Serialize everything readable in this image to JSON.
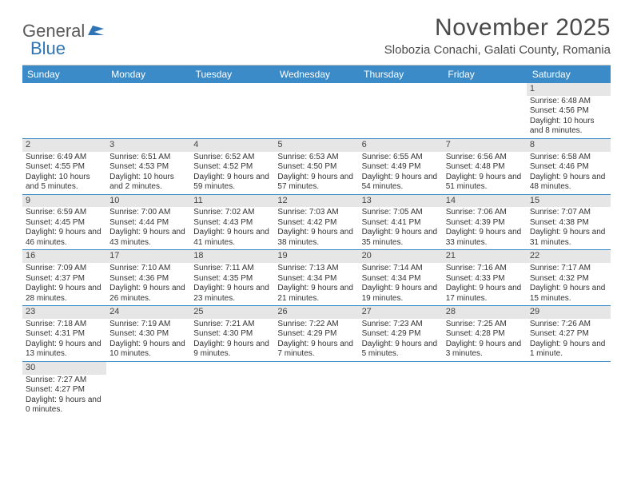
{
  "logo": {
    "text1": "General",
    "text2": "Blue"
  },
  "title": "November 2025",
  "location": "Slobozia Conachi, Galati County, Romania",
  "colors": {
    "header_bg": "#3b8bc9",
    "header_text": "#ffffff",
    "daynum_bg": "#e6e6e6",
    "row_border": "#3b8bc9",
    "logo_gray": "#5a5a5a",
    "logo_blue": "#2f75b5"
  },
  "weekdays": [
    "Sunday",
    "Monday",
    "Tuesday",
    "Wednesday",
    "Thursday",
    "Friday",
    "Saturday"
  ],
  "weeks": [
    [
      null,
      null,
      null,
      null,
      null,
      null,
      {
        "n": "1",
        "sunrise": "Sunrise: 6:48 AM",
        "sunset": "Sunset: 4:56 PM",
        "daylight": "Daylight: 10 hours and 8 minutes."
      }
    ],
    [
      {
        "n": "2",
        "sunrise": "Sunrise: 6:49 AM",
        "sunset": "Sunset: 4:55 PM",
        "daylight": "Daylight: 10 hours and 5 minutes."
      },
      {
        "n": "3",
        "sunrise": "Sunrise: 6:51 AM",
        "sunset": "Sunset: 4:53 PM",
        "daylight": "Daylight: 10 hours and 2 minutes."
      },
      {
        "n": "4",
        "sunrise": "Sunrise: 6:52 AM",
        "sunset": "Sunset: 4:52 PM",
        "daylight": "Daylight: 9 hours and 59 minutes."
      },
      {
        "n": "5",
        "sunrise": "Sunrise: 6:53 AM",
        "sunset": "Sunset: 4:50 PM",
        "daylight": "Daylight: 9 hours and 57 minutes."
      },
      {
        "n": "6",
        "sunrise": "Sunrise: 6:55 AM",
        "sunset": "Sunset: 4:49 PM",
        "daylight": "Daylight: 9 hours and 54 minutes."
      },
      {
        "n": "7",
        "sunrise": "Sunrise: 6:56 AM",
        "sunset": "Sunset: 4:48 PM",
        "daylight": "Daylight: 9 hours and 51 minutes."
      },
      {
        "n": "8",
        "sunrise": "Sunrise: 6:58 AM",
        "sunset": "Sunset: 4:46 PM",
        "daylight": "Daylight: 9 hours and 48 minutes."
      }
    ],
    [
      {
        "n": "9",
        "sunrise": "Sunrise: 6:59 AM",
        "sunset": "Sunset: 4:45 PM",
        "daylight": "Daylight: 9 hours and 46 minutes."
      },
      {
        "n": "10",
        "sunrise": "Sunrise: 7:00 AM",
        "sunset": "Sunset: 4:44 PM",
        "daylight": "Daylight: 9 hours and 43 minutes."
      },
      {
        "n": "11",
        "sunrise": "Sunrise: 7:02 AM",
        "sunset": "Sunset: 4:43 PM",
        "daylight": "Daylight: 9 hours and 41 minutes."
      },
      {
        "n": "12",
        "sunrise": "Sunrise: 7:03 AM",
        "sunset": "Sunset: 4:42 PM",
        "daylight": "Daylight: 9 hours and 38 minutes."
      },
      {
        "n": "13",
        "sunrise": "Sunrise: 7:05 AM",
        "sunset": "Sunset: 4:41 PM",
        "daylight": "Daylight: 9 hours and 35 minutes."
      },
      {
        "n": "14",
        "sunrise": "Sunrise: 7:06 AM",
        "sunset": "Sunset: 4:39 PM",
        "daylight": "Daylight: 9 hours and 33 minutes."
      },
      {
        "n": "15",
        "sunrise": "Sunrise: 7:07 AM",
        "sunset": "Sunset: 4:38 PM",
        "daylight": "Daylight: 9 hours and 31 minutes."
      }
    ],
    [
      {
        "n": "16",
        "sunrise": "Sunrise: 7:09 AM",
        "sunset": "Sunset: 4:37 PM",
        "daylight": "Daylight: 9 hours and 28 minutes."
      },
      {
        "n": "17",
        "sunrise": "Sunrise: 7:10 AM",
        "sunset": "Sunset: 4:36 PM",
        "daylight": "Daylight: 9 hours and 26 minutes."
      },
      {
        "n": "18",
        "sunrise": "Sunrise: 7:11 AM",
        "sunset": "Sunset: 4:35 PM",
        "daylight": "Daylight: 9 hours and 23 minutes."
      },
      {
        "n": "19",
        "sunrise": "Sunrise: 7:13 AM",
        "sunset": "Sunset: 4:34 PM",
        "daylight": "Daylight: 9 hours and 21 minutes."
      },
      {
        "n": "20",
        "sunrise": "Sunrise: 7:14 AM",
        "sunset": "Sunset: 4:34 PM",
        "daylight": "Daylight: 9 hours and 19 minutes."
      },
      {
        "n": "21",
        "sunrise": "Sunrise: 7:16 AM",
        "sunset": "Sunset: 4:33 PM",
        "daylight": "Daylight: 9 hours and 17 minutes."
      },
      {
        "n": "22",
        "sunrise": "Sunrise: 7:17 AM",
        "sunset": "Sunset: 4:32 PM",
        "daylight": "Daylight: 9 hours and 15 minutes."
      }
    ],
    [
      {
        "n": "23",
        "sunrise": "Sunrise: 7:18 AM",
        "sunset": "Sunset: 4:31 PM",
        "daylight": "Daylight: 9 hours and 13 minutes."
      },
      {
        "n": "24",
        "sunrise": "Sunrise: 7:19 AM",
        "sunset": "Sunset: 4:30 PM",
        "daylight": "Daylight: 9 hours and 10 minutes."
      },
      {
        "n": "25",
        "sunrise": "Sunrise: 7:21 AM",
        "sunset": "Sunset: 4:30 PM",
        "daylight": "Daylight: 9 hours and 9 minutes."
      },
      {
        "n": "26",
        "sunrise": "Sunrise: 7:22 AM",
        "sunset": "Sunset: 4:29 PM",
        "daylight": "Daylight: 9 hours and 7 minutes."
      },
      {
        "n": "27",
        "sunrise": "Sunrise: 7:23 AM",
        "sunset": "Sunset: 4:29 PM",
        "daylight": "Daylight: 9 hours and 5 minutes."
      },
      {
        "n": "28",
        "sunrise": "Sunrise: 7:25 AM",
        "sunset": "Sunset: 4:28 PM",
        "daylight": "Daylight: 9 hours and 3 minutes."
      },
      {
        "n": "29",
        "sunrise": "Sunrise: 7:26 AM",
        "sunset": "Sunset: 4:27 PM",
        "daylight": "Daylight: 9 hours and 1 minute."
      }
    ],
    [
      {
        "n": "30",
        "sunrise": "Sunrise: 7:27 AM",
        "sunset": "Sunset: 4:27 PM",
        "daylight": "Daylight: 9 hours and 0 minutes."
      },
      null,
      null,
      null,
      null,
      null,
      null
    ]
  ]
}
